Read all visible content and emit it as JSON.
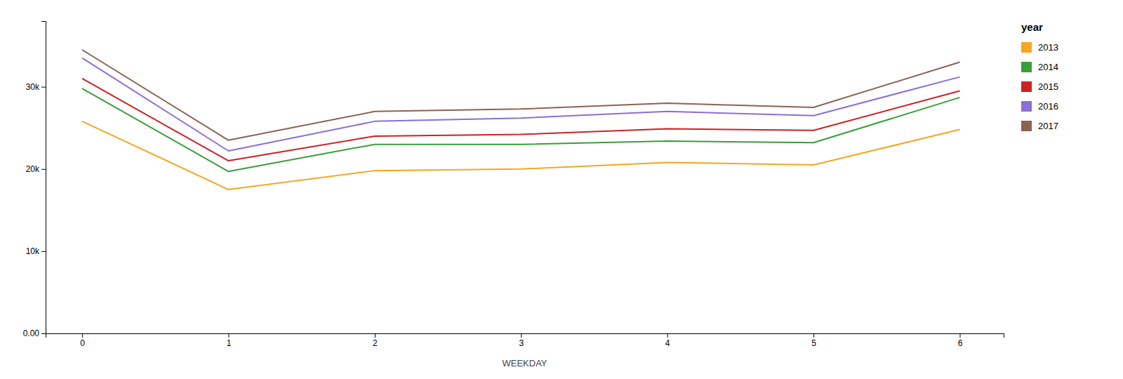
{
  "chart_data": {
    "type": "line",
    "x": [
      0,
      1,
      2,
      3,
      4,
      5,
      6
    ],
    "xlabel": "WEEKDAY",
    "legend_title": "year",
    "series": [
      {
        "name": "2013",
        "color": "#F5A623",
        "values": [
          25800,
          17500,
          19800,
          20000,
          20800,
          20500,
          24800
        ]
      },
      {
        "name": "2014",
        "color": "#3A9E3A",
        "values": [
          29800,
          19700,
          23000,
          23000,
          23400,
          23200,
          28700
        ]
      },
      {
        "name": "2015",
        "color": "#CC2222",
        "values": [
          31000,
          21000,
          24000,
          24200,
          24900,
          24700,
          29500
        ]
      },
      {
        "name": "2016",
        "color": "#8B6FD4",
        "values": [
          33500,
          22200,
          25800,
          26200,
          27000,
          26500,
          31200
        ]
      },
      {
        "name": "2017",
        "color": "#8B6355",
        "values": [
          34500,
          23500,
          27000,
          27300,
          28000,
          27500,
          33000
        ]
      }
    ],
    "xlim": [
      -0.25,
      6.3
    ],
    "ylim": [
      0,
      38000
    ],
    "xticks": [
      0,
      1,
      2,
      3,
      4,
      5,
      6
    ],
    "yticks": [
      {
        "value": 0,
        "label": "0.00"
      },
      {
        "value": 10000,
        "label": "10k"
      },
      {
        "value": 20000,
        "label": "20k"
      },
      {
        "value": 30000,
        "label": "30k"
      }
    ],
    "grid": false,
    "legend": "right"
  }
}
